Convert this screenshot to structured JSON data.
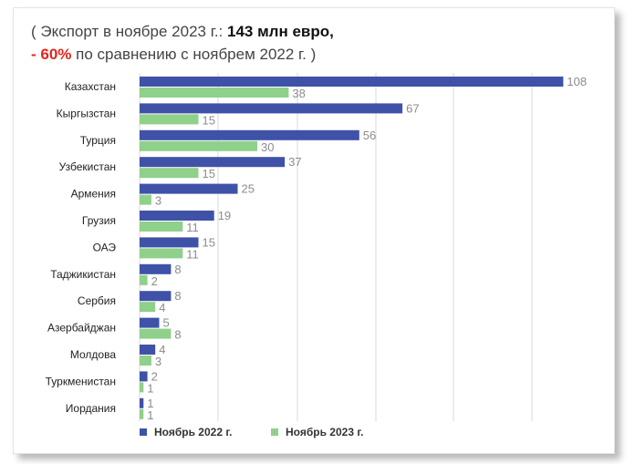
{
  "header": {
    "line1_prefix": "( Экспорт в ноябре 2023 г.: ",
    "line1_bold": "143 млн евро,",
    "line2_red": "- 60%",
    "line2_rest": " по сравнению с ноябрем 2022 г. )"
  },
  "colors": {
    "series_2022": "#3f52a8",
    "series_2023": "#8fd08a",
    "accent_red": "#e8231a"
  },
  "chart_data": {
    "type": "bar",
    "orientation": "horizontal",
    "categories": [
      "Казахстан",
      "Кыргызстан",
      "Турция",
      "Узбекистан",
      "Армения",
      "Грузия",
      "ОАЭ",
      "Таджикистан",
      "Сербия",
      "Азербайджан",
      "Молдова",
      "Туркменистан",
      "Иордания"
    ],
    "series": [
      {
        "name": "Ноябрь 2022 г.",
        "values": [
          108,
          67,
          56,
          37,
          25,
          19,
          15,
          8,
          8,
          5,
          4,
          2,
          1
        ]
      },
      {
        "name": "Ноябрь 2023 г.",
        "values": [
          38,
          15,
          30,
          15,
          3,
          11,
          11,
          2,
          4,
          8,
          3,
          1,
          1
        ]
      }
    ],
    "xlim": [
      0,
      110
    ],
    "grid": true,
    "legend_position": "bottom"
  }
}
